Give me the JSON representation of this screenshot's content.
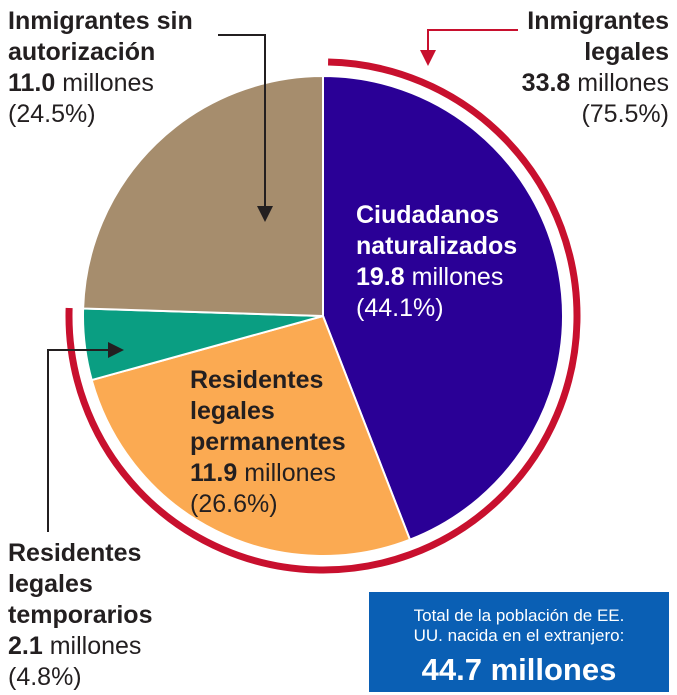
{
  "chart_data": {
    "type": "pie",
    "categories": [
      "Ciudadanos naturalizados",
      "Residentes legales permanentes",
      "Residentes legales temporarios",
      "Inmigrantes sin autorización"
    ],
    "values": [
      44.1,
      26.6,
      4.8,
      24.5
    ],
    "value_labels": [
      "(44.1%)",
      "(26.6%)",
      "(4.8%)",
      "(24.5%)"
    ],
    "amounts": [
      19.8,
      11.9,
      2.1,
      11.0
    ],
    "amount_labels": [
      "19.8",
      "11.9",
      "2.1",
      "11.0"
    ],
    "unit": "millones",
    "colors": [
      "#2a0096",
      "#fbaa52",
      "#0a9e82",
      "#a68d6d"
    ],
    "group": {
      "name": "Inmigrantes legales",
      "value": 75.5,
      "value_label": "(75.5%)",
      "amount": 33.8,
      "color": "#c8102e"
    },
    "total": {
      "label": "Total de la población de EE. UU. nacida en el extranjero:",
      "amount": 44.7
    }
  }
}
